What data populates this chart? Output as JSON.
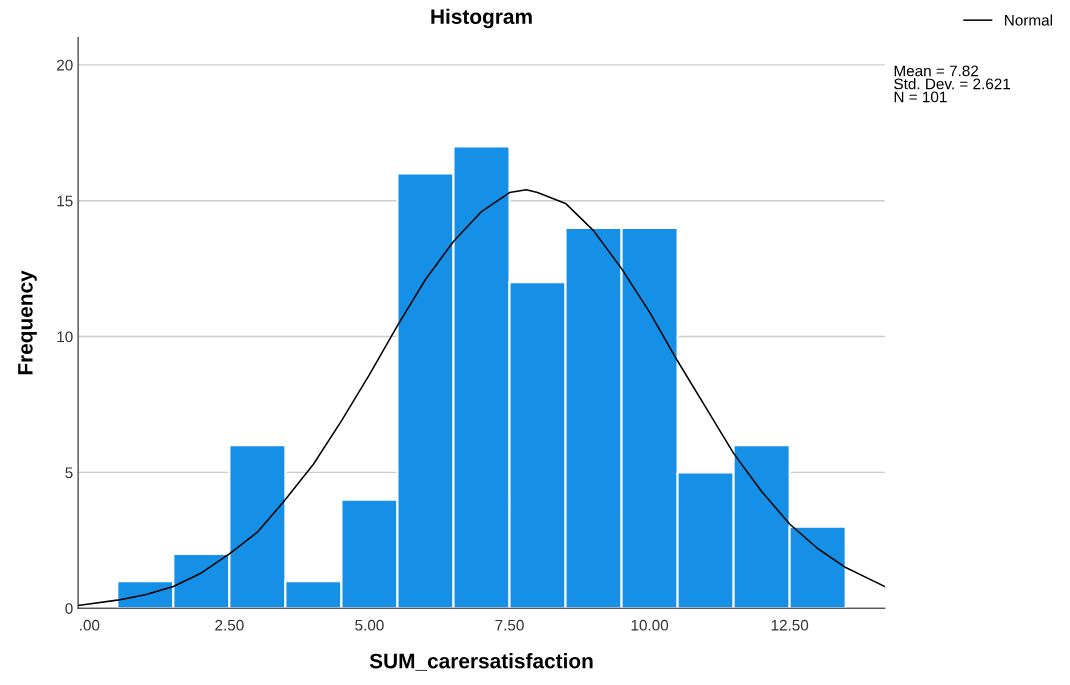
{
  "chart_data": {
    "type": "histogram",
    "title": "Histogram",
    "xlabel": "SUM_carersatisfaction",
    "ylabel": "Frequency",
    "bins": [
      0.5,
      1.5,
      2.5,
      3.5,
      4.5,
      5.5,
      6.5,
      7.5,
      8.5,
      9.5,
      10.5,
      11.5,
      12.5,
      13.5
    ],
    "values": [
      1,
      2,
      6,
      1,
      4,
      16,
      17,
      12,
      14,
      14,
      5,
      6,
      3
    ],
    "color": "#1590e6",
    "series": [
      {
        "name": "Normal",
        "type": "line",
        "color": "#000000",
        "x": [
          -0.2,
          0.5,
          1.0,
          1.5,
          2.0,
          2.5,
          3.0,
          3.5,
          4.0,
          4.5,
          5.0,
          5.5,
          6.0,
          6.5,
          7.0,
          7.5,
          7.8,
          8.0,
          8.5,
          9.0,
          9.5,
          10.0,
          10.5,
          11.0,
          11.5,
          12.0,
          12.5,
          13.0,
          13.5,
          14.0,
          14.2
        ],
        "values": [
          0.1,
          0.3,
          0.5,
          0.8,
          1.3,
          2.0,
          2.8,
          4.0,
          5.3,
          6.9,
          8.6,
          10.4,
          12.1,
          13.5,
          14.6,
          15.3,
          15.4,
          15.3,
          14.9,
          13.9,
          12.5,
          10.9,
          9.1,
          7.4,
          5.7,
          4.3,
          3.1,
          2.2,
          1.5,
          1.0,
          0.8
        ]
      }
    ],
    "xlim": [
      -0.2,
      14.2
    ],
    "ylim": [
      0,
      21
    ],
    "xticks": [
      {
        "value": 0,
        "label": ".00"
      },
      {
        "value": 2.5,
        "label": "2.50"
      },
      {
        "value": 5,
        "label": "5.00"
      },
      {
        "value": 7.5,
        "label": "7.50"
      },
      {
        "value": 10,
        "label": "10.00"
      },
      {
        "value": 12.5,
        "label": "12.50"
      }
    ],
    "yticks": [
      0,
      5,
      10,
      15,
      20
    ],
    "grid": "y",
    "legend": "top right",
    "annotations": [
      "Mean = 7.82",
      "Std. Dev. = 2.621",
      "N = 101"
    ]
  }
}
